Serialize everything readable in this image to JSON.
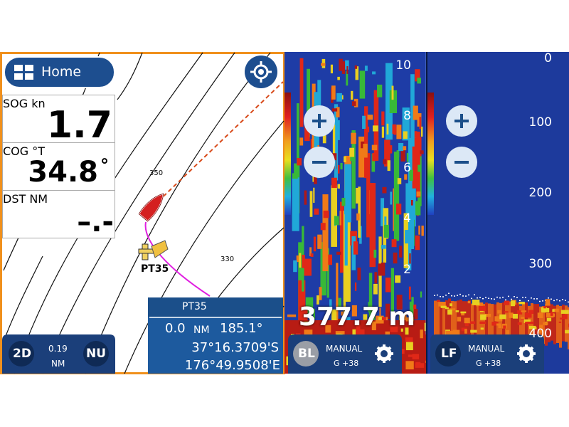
{
  "chart_panel": {
    "home_button": "Home",
    "data_boxes": [
      {
        "label": "SOG kn",
        "value": "1.7"
      },
      {
        "label": "COG °T",
        "value": "34.8",
        "unit": "°"
      },
      {
        "label": "DST NM",
        "value": "–.-"
      }
    ],
    "contour_labels": [
      "350",
      "330"
    ],
    "waypoint_label": "PT35",
    "bottom_bar": {
      "view": "2D",
      "range_value": "0.19",
      "range_unit": "NM",
      "orientation": "NU"
    },
    "waypoint_info": {
      "name": "PT35",
      "distance": "0.0",
      "distance_unit": "NM",
      "bearing": "185.1°",
      "latitude": "37°16.3709'S",
      "longitude": "176°49.9508'E"
    }
  },
  "sonar_left": {
    "depth_scale": [
      "10",
      "8",
      "6",
      "4",
      "2"
    ],
    "depth_readout": "377.7 m",
    "mode_badge": "BL",
    "gain_mode": "MANUAL",
    "gain": "G +38"
  },
  "sonar_right": {
    "depth_scale": [
      "0",
      "100",
      "200",
      "300",
      "400"
    ],
    "mode_badge": "LF",
    "gain_mode": "MANUAL",
    "gain": "G +38"
  }
}
